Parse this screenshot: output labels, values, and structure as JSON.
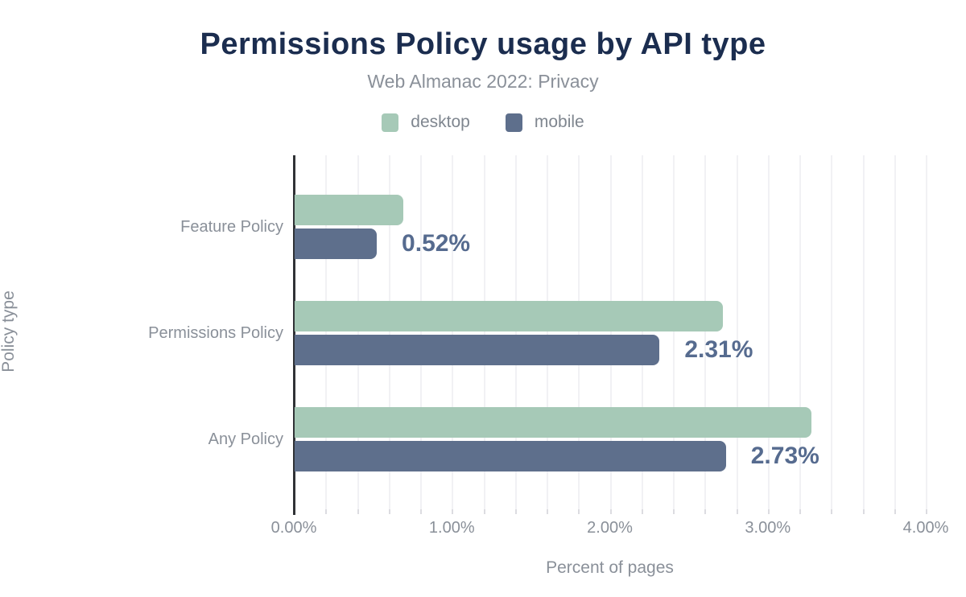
{
  "header": {
    "title": "Permissions Policy usage by API type",
    "subtitle": "Web Almanac 2022: Privacy"
  },
  "legend": [
    {
      "label": "desktop",
      "color": "#a6c9b7"
    },
    {
      "label": "mobile",
      "color": "#5e6f8c"
    }
  ],
  "chart_data": {
    "type": "bar",
    "orientation": "horizontal",
    "title": "Permissions Policy usage by API type",
    "subtitle": "Web Almanac 2022: Privacy",
    "categories": [
      "Feature Policy",
      "Permissions Policy",
      "Any Policy"
    ],
    "series": [
      {
        "name": "desktop",
        "color": "#a6c9b7",
        "values": [
          0.69,
          2.71,
          3.27
        ]
      },
      {
        "name": "mobile",
        "color": "#5e6f8c",
        "values": [
          0.52,
          2.31,
          2.73
        ]
      }
    ],
    "data_labels": {
      "on_series": "mobile",
      "values": [
        "0.52%",
        "2.31%",
        "2.73%"
      ],
      "color": "#566b8f"
    },
    "xlabel": "Percent of pages",
    "ylabel": "Policy type",
    "xlim": [
      0,
      4
    ],
    "x_ticks": [
      {
        "value": 0,
        "label": "0.00%"
      },
      {
        "value": 1,
        "label": "1.00%"
      },
      {
        "value": 2,
        "label": "2.00%"
      },
      {
        "value": 3,
        "label": "3.00%"
      },
      {
        "value": 4,
        "label": "4.00%"
      }
    ],
    "grid": {
      "minor_step": 0.2,
      "on": true
    },
    "legend_position": "top"
  },
  "colors": {
    "title_text": "#1b2d4f",
    "muted_text": "#8a9099",
    "axis_line": "#303236",
    "gridline": "#f1f1f4"
  }
}
